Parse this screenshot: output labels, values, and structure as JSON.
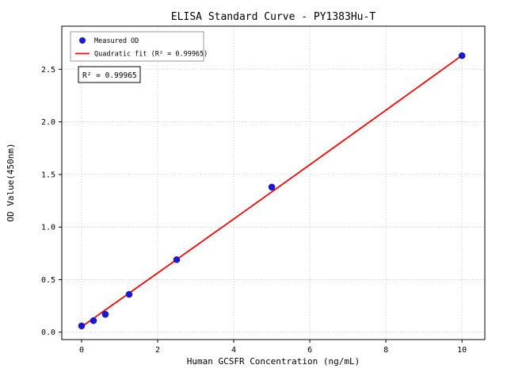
{
  "chart_data": {
    "type": "scatter",
    "title": "ELISA Standard Curve - PY1383Hu-T",
    "xlabel": "Human GCSFR Concentration (ng/mL)",
    "ylabel": "OD Value(450nm)",
    "xlim": [
      -0.52,
      10.6
    ],
    "ylim": [
      -0.07,
      2.91
    ],
    "xticks": [
      0,
      2,
      4,
      6,
      8,
      10
    ],
    "xtick_labels": [
      "0",
      "2",
      "4",
      "6",
      "8",
      "10"
    ],
    "yticks": [
      0.0,
      0.5,
      1.0,
      1.5,
      2.0,
      2.5
    ],
    "ytick_labels": [
      "0.0",
      "0.5",
      "1.0",
      "1.5",
      "2.0",
      "2.5"
    ],
    "grid": "dotted",
    "points": {
      "name": "Measured OD",
      "x": [
        0,
        0.3125,
        0.625,
        1.25,
        2.5,
        5,
        10
      ],
      "y": [
        0.06,
        0.11,
        0.17,
        0.36,
        0.69,
        1.38,
        2.63
      ]
    },
    "fit": {
      "name": "Quadratic fit",
      "a": 0.0003,
      "b": 0.255,
      "c": 0.052,
      "x_range": [
        0,
        10
      ],
      "r_squared": 0.99965
    },
    "legend": [
      {
        "label": "Measured OD",
        "marker": "circle"
      },
      {
        "label": "Quadratic fit (R² = 0.99965)",
        "marker": "line"
      }
    ],
    "legend_position": "upper left",
    "annotation": "R² = 0.99965",
    "colors": {
      "points": "#1a1acd",
      "fit_line": "#ff0000",
      "grid": "#b5b5b5"
    }
  }
}
